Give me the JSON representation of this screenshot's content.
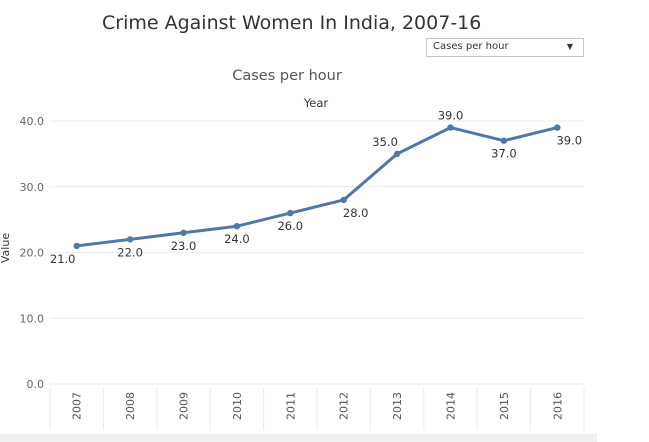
{
  "header": {
    "title": "Crime Against Women In India, 2007-16"
  },
  "filter": {
    "selected": "Cases per hour",
    "caret_icon": "chevron-down-icon"
  },
  "colors": {
    "line": "#4e79a7",
    "grid": "#ebebeb",
    "text": "#333333"
  },
  "chart_data": {
    "type": "line",
    "title": "Cases per hour",
    "column_header": "Year",
    "ylabel": "Value",
    "categories": [
      "2007",
      "2008",
      "2009",
      "2010",
      "2011",
      "2012",
      "2013",
      "2014",
      "2015",
      "2016"
    ],
    "series": [
      {
        "values": [
          21.0,
          22.0,
          23.0,
          24.0,
          26.0,
          28.0,
          35.0,
          39.0,
          37.0,
          39.0
        ]
      }
    ],
    "data_labels": [
      "21.0",
      "22.0",
      "23.0",
      "24.0",
      "26.0",
      "28.0",
      "35.0",
      "39.0",
      "37.0",
      "39.0"
    ],
    "yticks": [
      "0.0",
      "10.0",
      "20.0",
      "30.0",
      "40.0"
    ],
    "ylim": [
      0,
      40
    ],
    "grid": true
  }
}
